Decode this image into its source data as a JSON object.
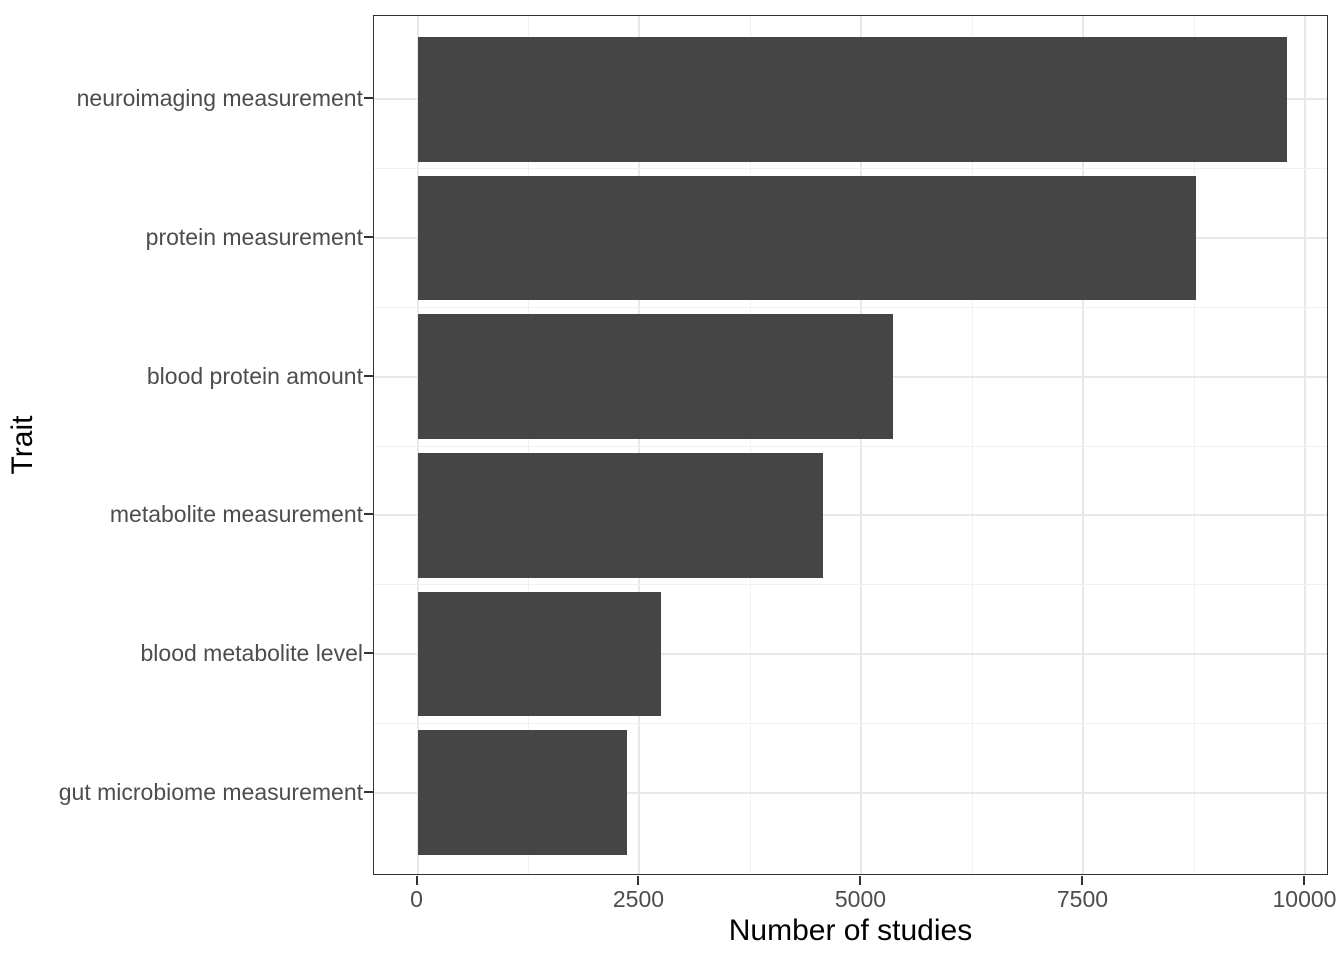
{
  "chart_data": {
    "type": "bar",
    "orientation": "horizontal",
    "title": "",
    "categories": [
      "neuroimaging measurement",
      "protein measurement",
      "blood protein amount",
      "metabolite measurement",
      "blood metabolite level",
      "gut microbiome measurement"
    ],
    "values": [
      9790,
      8770,
      5350,
      4570,
      2740,
      2360
    ],
    "xlabel": "Number of studies",
    "ylabel": "Trait",
    "x_tick_values": [
      0,
      2500,
      5000,
      7500,
      10000
    ],
    "x_tick_labels": [
      "0",
      "2500",
      "5000",
      "7500",
      "10000"
    ],
    "x_minor_gridlines": [
      1250,
      3750,
      6250,
      8750
    ],
    "xlim": [
      -490,
      10265
    ],
    "grid": "major and minor, light gray on white",
    "legend": "none",
    "colors": {
      "bar_fill": "#454545",
      "panel_border": "#333333",
      "major_grid": "#e8e8e8",
      "minor_grid": "#f1f1f1",
      "tick_mark": "#333333",
      "axis_text": "#4d4d4d",
      "axis_title": "#000000",
      "background": "#ffffff"
    }
  }
}
